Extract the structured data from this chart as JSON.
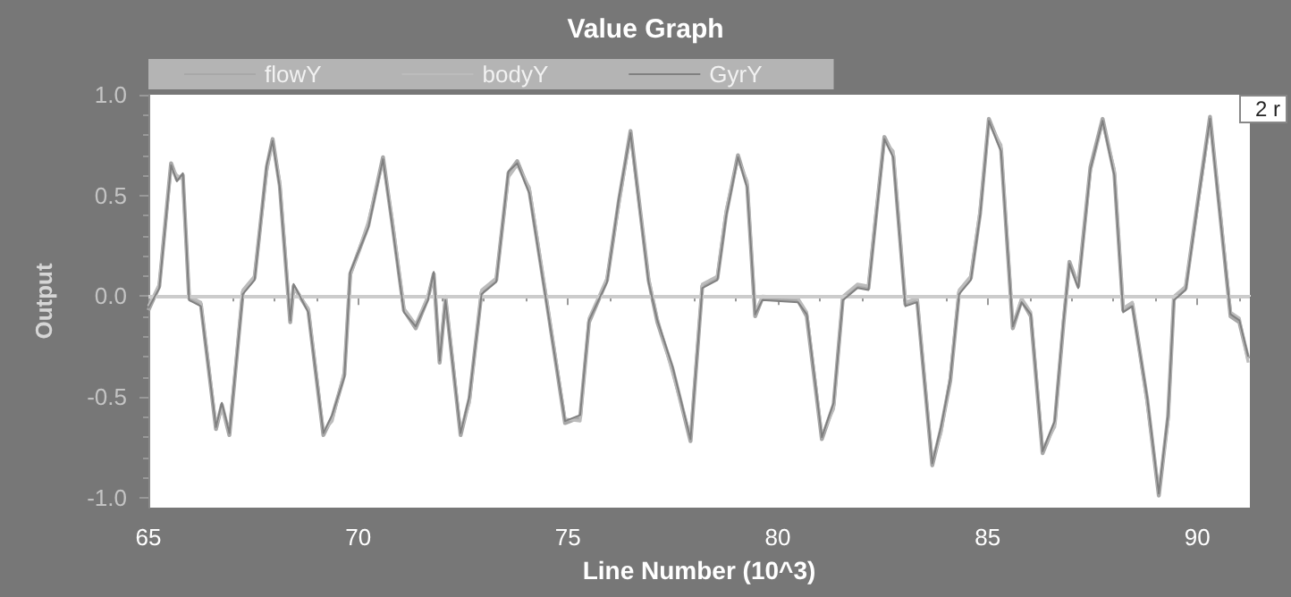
{
  "chart_data": {
    "type": "line",
    "title": "Value Graph",
    "xlabel": "Line Number (10^3)",
    "ylabel": "Output",
    "x": [
      65.0,
      65.26,
      65.54,
      65.68,
      65.82,
      65.97,
      66.25,
      66.61,
      66.75,
      66.93,
      67.25,
      67.53,
      67.82,
      67.96,
      68.13,
      68.38,
      68.46,
      68.81,
      69.17,
      69.38,
      69.67,
      69.81,
      70.24,
      70.59,
      70.8,
      71.09,
      71.37,
      71.66,
      71.8,
      71.94,
      72.08,
      72.44,
      72.65,
      72.94,
      73.29,
      73.58,
      73.79,
      74.08,
      74.5,
      74.93,
      75.29,
      75.5,
      75.93,
      76.21,
      76.49,
      76.92,
      77.13,
      77.49,
      77.92,
      78.2,
      78.56,
      78.77,
      79.05,
      79.27,
      79.46,
      79.63,
      80.48,
      80.69,
      81.05,
      81.33,
      81.55,
      81.9,
      82.16,
      82.33,
      82.54,
      82.75,
      83.04,
      83.32,
      83.68,
      83.89,
      84.11,
      84.32,
      84.6,
      84.82,
      85.03,
      85.32,
      85.6,
      85.81,
      86.03,
      86.31,
      86.6,
      86.81,
      86.95,
      87.16,
      87.45,
      87.74,
      88.02,
      88.23,
      88.45,
      88.8,
      89.08,
      89.3,
      89.44,
      89.72,
      90.01,
      90.3,
      90.51,
      90.79,
      91.0,
      91.21
    ],
    "series": [
      {
        "name": "flowY",
        "color": "#a8a8a8",
        "values": [
          -0.07,
          0.05,
          0.66,
          0.58,
          0.6,
          -0.01,
          -0.04,
          -0.66,
          -0.54,
          -0.69,
          0.02,
          0.09,
          0.64,
          0.78,
          0.55,
          -0.13,
          0.05,
          -0.07,
          -0.69,
          -0.6,
          -0.39,
          0.11,
          0.35,
          0.69,
          0.38,
          -0.07,
          -0.16,
          -0.01,
          0.11,
          -0.33,
          -0.01,
          -0.69,
          -0.51,
          0.02,
          0.08,
          0.61,
          0.67,
          0.52,
          -0.04,
          -0.63,
          -0.6,
          -0.13,
          0.08,
          0.47,
          0.82,
          0.08,
          -0.13,
          -0.36,
          -0.72,
          0.05,
          0.09,
          0.41,
          0.7,
          0.55,
          -0.1,
          -0.01,
          -0.02,
          -0.1,
          -0.71,
          -0.54,
          -0.01,
          0.05,
          0.04,
          0.38,
          0.79,
          0.7,
          -0.04,
          -0.02,
          -0.84,
          -0.66,
          -0.42,
          0.02,
          0.09,
          0.41,
          0.88,
          0.73,
          -0.16,
          -0.02,
          -0.1,
          -0.78,
          -0.63,
          -0.13,
          0.17,
          0.05,
          0.64,
          0.88,
          0.61,
          -0.07,
          -0.04,
          -0.51,
          -0.99,
          -0.6,
          -0.01,
          0.04,
          0.47,
          0.89,
          0.47,
          -0.1,
          -0.13,
          -0.31
        ]
      },
      {
        "name": "bodyY",
        "color": "#bcbcbc",
        "values": [
          -0.05,
          0.06,
          0.64,
          0.6,
          0.58,
          0.0,
          -0.03,
          -0.64,
          -0.56,
          -0.67,
          0.03,
          0.1,
          0.62,
          0.76,
          0.57,
          -0.11,
          0.04,
          -0.06,
          -0.67,
          -0.62,
          -0.37,
          0.1,
          0.37,
          0.67,
          0.4,
          -0.06,
          -0.14,
          0.0,
          0.1,
          -0.31,
          0.0,
          -0.67,
          -0.53,
          0.03,
          0.09,
          0.59,
          0.65,
          0.54,
          -0.03,
          -0.61,
          -0.62,
          -0.11,
          0.09,
          0.45,
          0.8,
          0.09,
          -0.11,
          -0.38,
          -0.7,
          0.06,
          0.1,
          0.43,
          0.68,
          0.57,
          -0.08,
          0.0,
          -0.01,
          -0.08,
          -0.69,
          -0.56,
          0.0,
          0.06,
          0.05,
          0.4,
          0.77,
          0.72,
          -0.03,
          -0.01,
          -0.82,
          -0.68,
          -0.4,
          0.03,
          0.1,
          0.43,
          0.86,
          0.75,
          -0.14,
          -0.01,
          -0.08,
          -0.76,
          -0.65,
          -0.11,
          0.15,
          0.06,
          0.62,
          0.86,
          0.63,
          -0.06,
          -0.03,
          -0.53,
          -0.97,
          -0.62,
          0.0,
          0.05,
          0.45,
          0.87,
          0.49,
          -0.08,
          -0.11,
          -0.33
        ]
      },
      {
        "name": "GyrY",
        "color": "#808080",
        "values": [
          -0.06,
          0.04,
          0.65,
          0.57,
          0.61,
          -0.02,
          -0.05,
          -0.65,
          -0.53,
          -0.68,
          0.01,
          0.08,
          0.65,
          0.77,
          0.54,
          -0.12,
          0.06,
          -0.08,
          -0.68,
          -0.59,
          -0.4,
          0.12,
          0.34,
          0.68,
          0.37,
          -0.08,
          -0.15,
          -0.02,
          0.12,
          -0.32,
          -0.02,
          -0.68,
          -0.5,
          0.01,
          0.07,
          0.62,
          0.66,
          0.51,
          -0.05,
          -0.62,
          -0.59,
          -0.12,
          0.07,
          0.48,
          0.81,
          0.07,
          -0.12,
          -0.35,
          -0.71,
          0.04,
          0.08,
          0.4,
          0.69,
          0.54,
          -0.09,
          -0.02,
          -0.03,
          -0.09,
          -0.7,
          -0.53,
          -0.02,
          0.04,
          0.03,
          0.37,
          0.78,
          0.69,
          -0.05,
          -0.03,
          -0.83,
          -0.65,
          -0.41,
          0.01,
          0.08,
          0.4,
          0.87,
          0.72,
          -0.15,
          -0.03,
          -0.09,
          -0.77,
          -0.62,
          -0.12,
          0.16,
          0.04,
          0.63,
          0.87,
          0.6,
          -0.08,
          -0.05,
          -0.5,
          -0.98,
          -0.59,
          -0.02,
          0.03,
          0.46,
          0.88,
          0.46,
          -0.09,
          -0.12,
          -0.3
        ]
      }
    ],
    "xlim": [
      65,
      91.25
    ],
    "xticks": [
      65,
      70,
      75,
      80,
      85,
      90
    ],
    "ylim": [
      -1.05,
      1.0
    ],
    "yticks": [
      {
        "value": -1,
        "label": "-1.0"
      },
      {
        "value": -0.5,
        "label": "-0.5"
      },
      {
        "value": 0,
        "label": "0.0"
      },
      {
        "value": 0.5,
        "label": "0.5"
      },
      {
        "value": 1,
        "label": "1.0"
      }
    ],
    "ref_lines": [
      {
        "axis": "y",
        "value": 0,
        "label": null,
        "color": "#cccccc"
      }
    ],
    "annotations": [
      "2 r"
    ],
    "legend": "top left",
    "grid": false,
    "marker": "none",
    "line_style": "solid"
  }
}
